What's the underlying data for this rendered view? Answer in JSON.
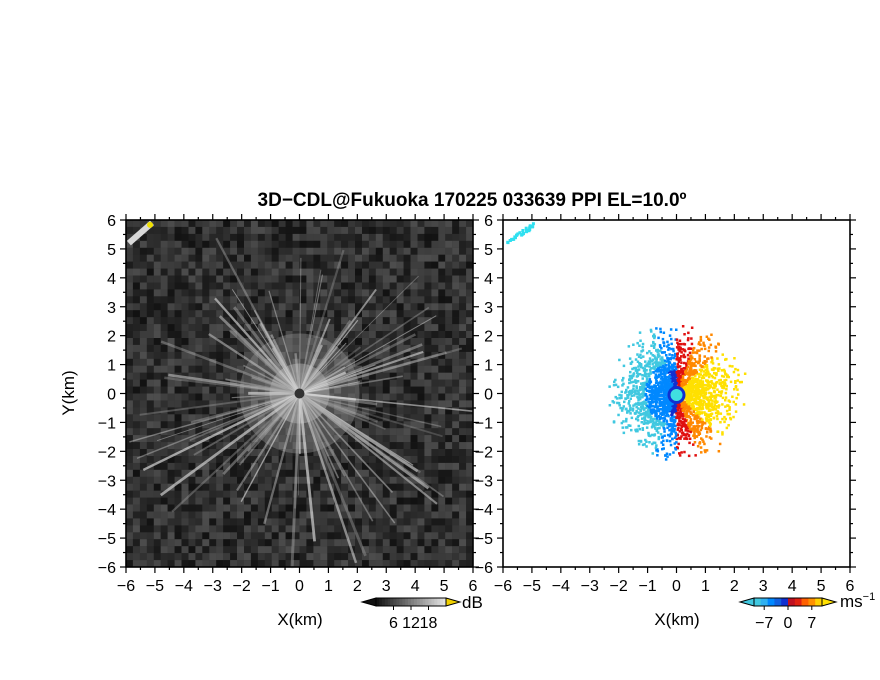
{
  "title": "3D−CDL@Fukuoka 170225 033639 PPI EL=10.0º",
  "chart_data": [
    {
      "type": "heatmap",
      "panel": "reflectivity",
      "xlabel": "X(km)",
      "ylabel": "Y(km)",
      "xlim": [
        -6,
        6
      ],
      "ylim": [
        -6,
        6
      ],
      "xticks": [
        "−6",
        "−5",
        "−4",
        "−3",
        "−2",
        "−1",
        "0",
        "1",
        "2",
        "3",
        "4",
        "5",
        "6"
      ],
      "yticks": [
        "−6",
        "−5",
        "−4",
        "−3",
        "−2",
        "−1",
        "0",
        "1",
        "2",
        "3",
        "4",
        "5",
        "6"
      ],
      "background": "speckle noise (dark gray)",
      "center_dot": [
        0,
        0
      ],
      "colorbar": {
        "label": "dB",
        "ticks": [
          "6",
          "12",
          "18"
        ],
        "tick_values": [
          6,
          12,
          18
        ],
        "range": [
          0,
          24
        ],
        "palette": "grayscale",
        "end_color": "#f0d000"
      }
    },
    {
      "type": "heatmap",
      "panel": "doppler_velocity",
      "xlabel": "X(km)",
      "ylabel": "",
      "xlim": [
        -6,
        6
      ],
      "ylim": [
        -6,
        6
      ],
      "xticks": [
        "−6",
        "−5",
        "−4",
        "−3",
        "−2",
        "−1",
        "0",
        "1",
        "2",
        "3",
        "4",
        "5",
        "6"
      ],
      "yticks": [
        "−6",
        "−5",
        "−4",
        "−3",
        "−2",
        "−1",
        "0",
        "1",
        "2",
        "3",
        "4",
        "5",
        "6"
      ],
      "colorbar": {
        "label": "ms",
        "label_exponent": "−1",
        "ticks": [
          "−7",
          "0",
          "7"
        ],
        "tick_values": [
          -7,
          0,
          7
        ],
        "range": [
          -10,
          10
        ],
        "palette": [
          "#40c8e0",
          "#0088ff",
          "#1030d0",
          "#e01010",
          "#ff8800",
          "#ffe000"
        ]
      }
    }
  ]
}
